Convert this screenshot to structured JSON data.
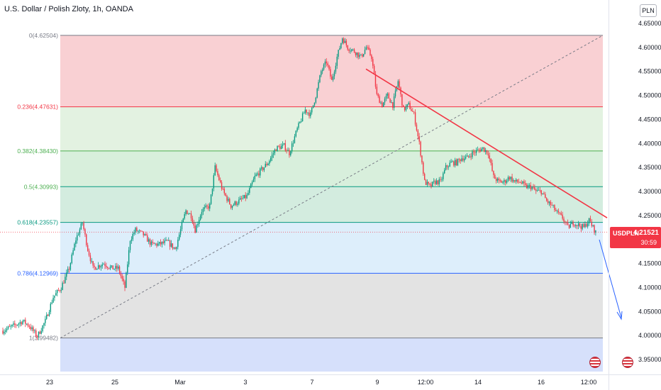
{
  "header": {
    "title": "U.S. Dollar / Polish Zloty, 1h, OANDA",
    "currency": "PLN"
  },
  "price_tag": {
    "symbol": "USDPLN",
    "value": "4.21521",
    "countdown": "30:59"
  },
  "colors": {
    "up": "#089981",
    "down": "#f23645",
    "trendline": "#f23645",
    "fib_0": "#f9d0d3",
    "fib_236": "#e3f2e1",
    "fib_382": "#d8efdc",
    "fib_5": "#d3ecdf",
    "fib_618": "#ddeefb",
    "fib_786": "#e3e3e3",
    "fib_1": "#d6e0fb"
  },
  "chart_data": {
    "type": "candlestick",
    "title": "U.S. Dollar / Polish Zloty, 1h, OANDA",
    "ylim": [
      3.925,
      4.67
    ],
    "y_ticks": [
      "4.65000",
      "4.60000",
      "4.55000",
      "4.50000",
      "4.45000",
      "4.40000",
      "4.35000",
      "4.30000",
      "4.25000",
      "4.20000",
      "4.15000",
      "4.10000",
      "4.05000",
      "4.00000",
      "3.95000"
    ],
    "y_tick_values": [
      4.65,
      4.6,
      4.55,
      4.5,
      4.45,
      4.4,
      4.35,
      4.3,
      4.25,
      4.2,
      4.15,
      4.1,
      4.05,
      4.0,
      3.95
    ],
    "x_ticks": [
      "23",
      "25",
      "Mar",
      "3",
      "7",
      "9",
      "12:00",
      "14",
      "16",
      "12:00"
    ],
    "fib_levels": [
      {
        "label": "0(4.62504)",
        "value": 4.62504
      },
      {
        "label": "0.236(4.47631)",
        "value": 4.47631
      },
      {
        "label": "0.382(4.38430)",
        "value": 4.3843
      },
      {
        "label": "0.5(4.30993)",
        "value": 4.30993
      },
      {
        "label": "0.618(4.23557)",
        "value": 4.23557
      },
      {
        "label": "0.786(4.12969)",
        "value": 4.12969
      },
      {
        "label": "1(3.99482)",
        "value": 3.99482
      }
    ],
    "last_price": 4.21521,
    "trendline": {
      "start": 4.555,
      "end": 4.245
    },
    "path_anchors": [
      [
        0,
        4.01
      ],
      [
        8,
        4.02
      ],
      [
        15,
        4.03
      ],
      [
        20,
        4.02
      ],
      [
        26,
        3.998
      ],
      [
        32,
        4.03
      ],
      [
        38,
        4.08
      ],
      [
        44,
        4.1
      ],
      [
        50,
        4.14
      ],
      [
        55,
        4.2
      ],
      [
        60,
        4.235
      ],
      [
        64,
        4.18
      ],
      [
        68,
        4.14
      ],
      [
        76,
        4.15
      ],
      [
        82,
        4.14
      ],
      [
        87,
        4.14
      ],
      [
        92,
        4.1
      ],
      [
        96,
        4.2
      ],
      [
        100,
        4.22
      ],
      [
        106,
        4.21
      ],
      [
        112,
        4.19
      ],
      [
        118,
        4.19
      ],
      [
        124,
        4.195
      ],
      [
        130,
        4.18
      ],
      [
        134,
        4.22
      ],
      [
        138,
        4.26
      ],
      [
        142,
        4.25
      ],
      [
        145,
        4.22
      ],
      [
        150,
        4.26
      ],
      [
        156,
        4.27
      ],
      [
        160,
        4.35
      ],
      [
        166,
        4.3
      ],
      [
        172,
        4.27
      ],
      [
        178,
        4.28
      ],
      [
        184,
        4.29
      ],
      [
        190,
        4.33
      ],
      [
        195,
        4.345
      ],
      [
        200,
        4.36
      ],
      [
        206,
        4.39
      ],
      [
        212,
        4.395
      ],
      [
        216,
        4.38
      ],
      [
        222,
        4.43
      ],
      [
        228,
        4.47
      ],
      [
        232,
        4.46
      ],
      [
        236,
        4.5
      ],
      [
        240,
        4.55
      ],
      [
        244,
        4.57
      ],
      [
        248,
        4.53
      ],
      [
        252,
        4.58
      ],
      [
        256,
        4.62
      ],
      [
        260,
        4.6
      ],
      [
        266,
        4.59
      ],
      [
        270,
        4.58
      ],
      [
        274,
        4.6
      ],
      [
        278,
        4.58
      ],
      [
        282,
        4.5
      ],
      [
        286,
        4.48
      ],
      [
        290,
        4.5
      ],
      [
        294,
        4.48
      ],
      [
        298,
        4.53
      ],
      [
        302,
        4.47
      ],
      [
        306,
        4.48
      ],
      [
        310,
        4.46
      ],
      [
        314,
        4.4
      ],
      [
        318,
        4.32
      ],
      [
        322,
        4.31
      ],
      [
        326,
        4.32
      ],
      [
        330,
        4.32
      ],
      [
        334,
        4.35
      ],
      [
        338,
        4.36
      ],
      [
        342,
        4.36
      ],
      [
        346,
        4.37
      ],
      [
        350,
        4.37
      ],
      [
        354,
        4.38
      ],
      [
        358,
        4.385
      ],
      [
        362,
        4.39
      ],
      [
        366,
        4.38
      ],
      [
        370,
        4.33
      ],
      [
        374,
        4.32
      ],
      [
        378,
        4.32
      ],
      [
        382,
        4.33
      ],
      [
        386,
        4.32
      ],
      [
        390,
        4.32
      ],
      [
        394,
        4.31
      ],
      [
        398,
        4.31
      ],
      [
        402,
        4.3
      ],
      [
        406,
        4.3
      ],
      [
        410,
        4.28
      ],
      [
        414,
        4.27
      ],
      [
        418,
        4.255
      ],
      [
        422,
        4.245
      ],
      [
        426,
        4.225
      ],
      [
        430,
        4.235
      ],
      [
        434,
        4.23
      ],
      [
        438,
        4.225
      ],
      [
        442,
        4.24
      ],
      [
        447,
        4.215
      ]
    ]
  }
}
